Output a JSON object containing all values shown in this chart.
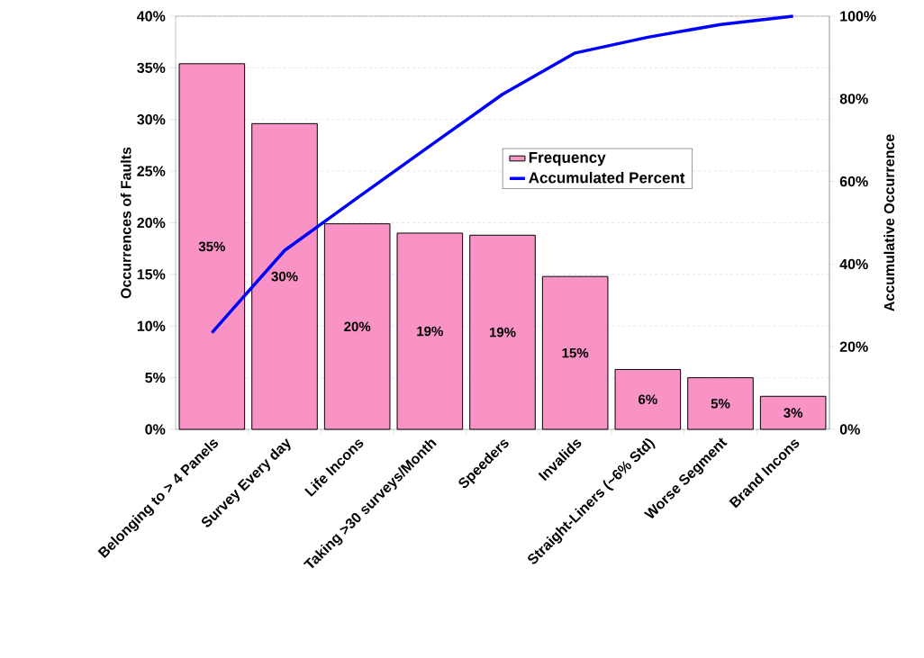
{
  "chart_data": {
    "type": "bar",
    "categories": [
      "Belonging to > 4 Panels",
      "Survey Every day",
      "Life Incons",
      "Taking >30 surveys/Month",
      "Speeders",
      "Invalids",
      "Straight-Liners (~6% Std)",
      "Worse Segment",
      "Brand Incons"
    ],
    "series": [
      {
        "name": "Frequency",
        "color": "#f993c6",
        "values": [
          35.4,
          29.6,
          19.9,
          19.0,
          18.8,
          14.8,
          5.8,
          5.0,
          3.2
        ],
        "value_labels": [
          "35%",
          "30%",
          "20%",
          "19%",
          "19%",
          "15%",
          "6%",
          "5%",
          "3%"
        ]
      },
      {
        "name": "Accumulated Percent",
        "type": "line",
        "axis": "y2",
        "color": "#0000ff",
        "values": [
          23.4,
          43.3,
          56,
          68.6,
          81.1,
          91.1,
          94.9,
          98.0,
          100
        ]
      }
    ],
    "ylabel": "Occurrences of Faults",
    "y2label": "Accumulative Occurrence",
    "ylim": [
      0,
      40
    ],
    "yticks": [
      {
        "value": 0,
        "label": "0%"
      },
      {
        "value": 5,
        "label": "5%"
      },
      {
        "value": 10,
        "label": "10%"
      },
      {
        "value": 15,
        "label": "15%"
      },
      {
        "value": 20,
        "label": "20%"
      },
      {
        "value": 25,
        "label": "25%"
      },
      {
        "value": 30,
        "label": "30%"
      },
      {
        "value": 35,
        "label": "35%"
      },
      {
        "value": 40,
        "label": "40%"
      }
    ],
    "y2lim": [
      0,
      100
    ],
    "y2ticks": [
      {
        "value": 0,
        "label": "0%"
      },
      {
        "value": 20,
        "label": "20%"
      },
      {
        "value": 40,
        "label": "40%"
      },
      {
        "value": 60,
        "label": "60%"
      },
      {
        "value": 80,
        "label": "80%"
      },
      {
        "value": 100,
        "label": "100%"
      }
    ],
    "grid": "y",
    "legend": "right",
    "marker": "none"
  }
}
